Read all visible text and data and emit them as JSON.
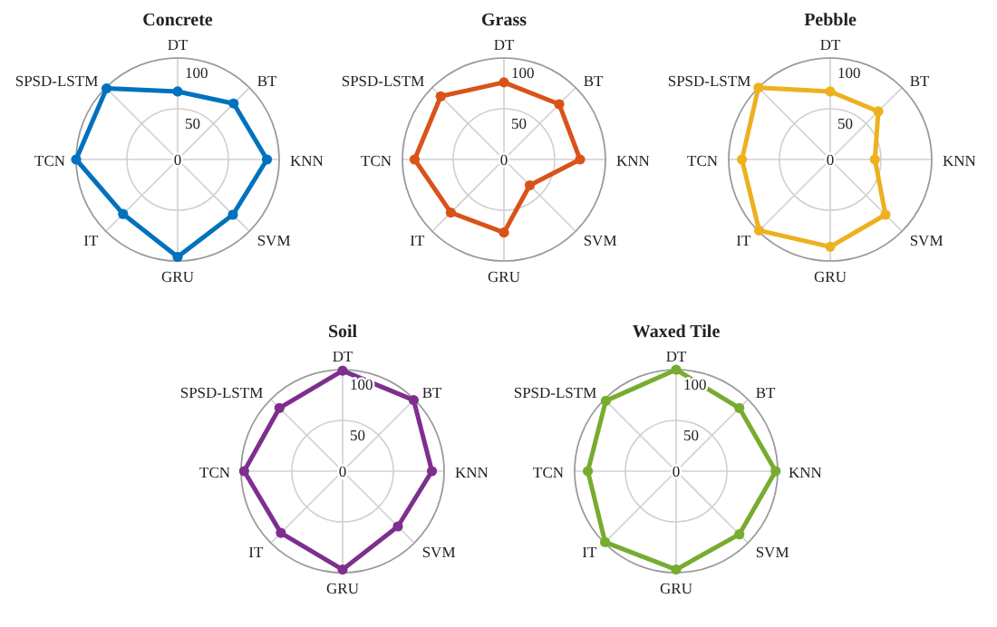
{
  "chart_data": [
    {
      "type": "radar",
      "title": "Concrete",
      "categories": [
        "DT",
        "BT",
        "KNN",
        "SVM",
        "GRU",
        "IT",
        "TCN",
        "SPSD-LSTM"
      ],
      "ylim": [
        0,
        100
      ],
      "yticks": [
        0,
        50,
        100
      ],
      "grid": true,
      "marker": "circle",
      "series": [
        {
          "color": "#0072bd",
          "values": [
            67,
            78,
            88,
            77,
            96,
            76,
            100,
            99
          ]
        }
      ]
    },
    {
      "type": "radar",
      "title": "Grass",
      "categories": [
        "DT",
        "BT",
        "KNN",
        "SVM",
        "GRU",
        "IT",
        "TCN",
        "SPSD-LSTM"
      ],
      "ylim": [
        0,
        100
      ],
      "yticks": [
        0,
        50,
        100
      ],
      "grid": true,
      "marker": "circle",
      "series": [
        {
          "color": "#d95319",
          "values": [
            76,
            77,
            75,
            36,
            72,
            74,
            88,
            88
          ]
        }
      ]
    },
    {
      "type": "radar",
      "title": "Pebble",
      "categories": [
        "DT",
        "BT",
        "KNN",
        "SVM",
        "GRU",
        "IT",
        "TCN",
        "SPSD-LSTM"
      ],
      "ylim": [
        0,
        100
      ],
      "yticks": [
        0,
        50,
        100
      ],
      "grid": true,
      "marker": "circle",
      "series": [
        {
          "color": "#edb120",
          "values": [
            67,
            67,
            44,
            77,
            86,
            99,
            87,
            100
          ]
        }
      ]
    },
    {
      "type": "radar",
      "title": "Soil",
      "categories": [
        "DT",
        "BT",
        "KNN",
        "SVM",
        "GRU",
        "IT",
        "TCN",
        "SPSD-LSTM"
      ],
      "ylim": [
        0,
        100
      ],
      "yticks": [
        0,
        50,
        100
      ],
      "grid": true,
      "marker": "circle",
      "series": [
        {
          "color": "#7e2f8e",
          "values": [
            99,
            99,
            88,
            77,
            97,
            86,
            97,
            88
          ]
        }
      ]
    },
    {
      "type": "radar",
      "title": "Waxed Tile",
      "categories": [
        "DT",
        "BT",
        "KNN",
        "SVM",
        "GRU",
        "IT",
        "TCN",
        "SPSD-LSTM"
      ],
      "ylim": [
        0,
        100
      ],
      "yticks": [
        0,
        50,
        100
      ],
      "grid": true,
      "marker": "circle",
      "series": [
        {
          "color": "#77ac30",
          "values": [
            100,
            88,
            98,
            88,
            97,
            99,
            87,
            98
          ]
        }
      ]
    }
  ]
}
